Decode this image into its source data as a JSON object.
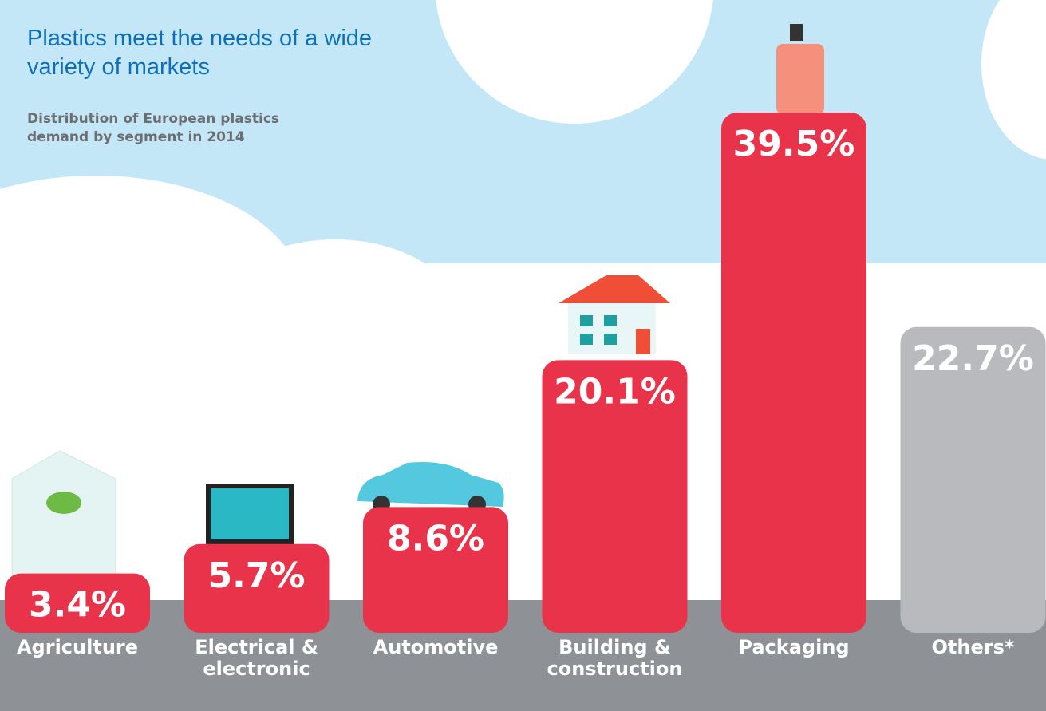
{
  "chart_data": {
    "type": "bar",
    "title": "Plastics meet the needs of a wide variety of markets",
    "subtitle": "Distribution of European plastics demand by segment in 2014",
    "categories": [
      "Agriculture",
      "Electrical & electronic",
      "Automotive",
      "Building & construction",
      "Packaging",
      "Others*"
    ],
    "values": [
      3.4,
      5.7,
      8.6,
      20.1,
      39.5,
      22.7
    ],
    "value_labels": [
      "3.4%",
      "5.7%",
      "8.6%",
      "20.1%",
      "39.5%",
      "22.7%"
    ],
    "colors": [
      "#e8334a",
      "#e8334a",
      "#e8334a",
      "#e8334a",
      "#e8334a",
      "#b9babe"
    ]
  }
}
